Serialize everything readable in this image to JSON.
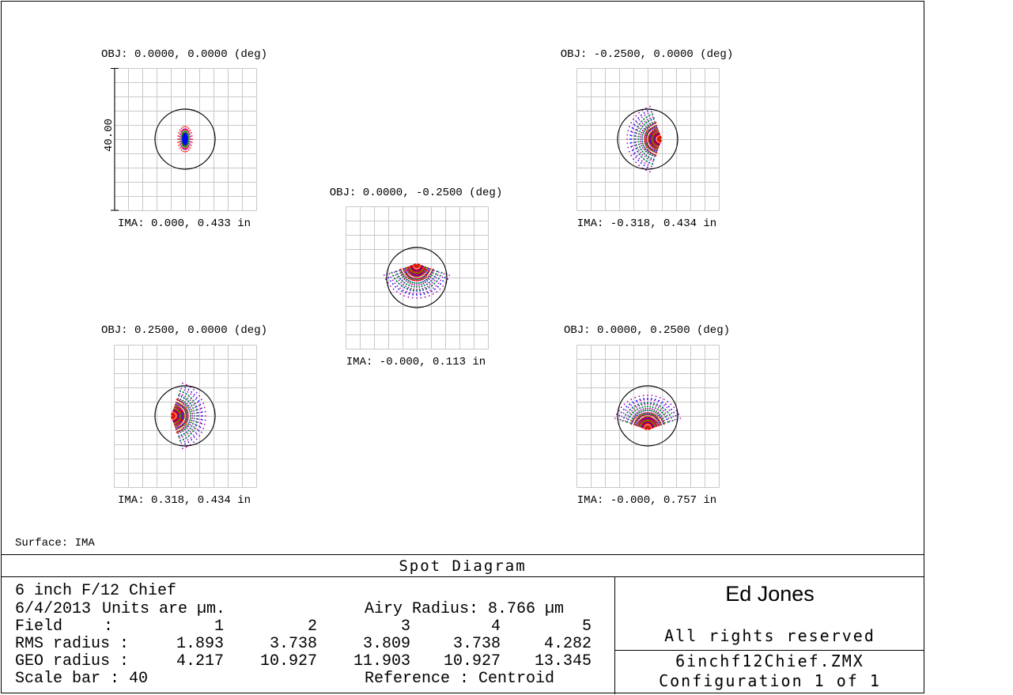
{
  "plots": [
    {
      "obj": "OBJ: 0.0000, 0.0000 (deg)",
      "ima": "IMA: 0.000, 0.433 in",
      "shape": "ellipse"
    },
    {
      "obj": "OBJ: -0.2500, 0.0000 (deg)",
      "ima": "IMA: -0.318, 0.434 in",
      "shape": "fan-right"
    },
    {
      "obj": "OBJ: 0.0000, -0.2500 (deg)",
      "ima": "IMA: -0.000, 0.113 in",
      "shape": "fan-up"
    },
    {
      "obj": "OBJ: 0.2500, 0.0000 (deg)",
      "ima": "IMA: 0.318, 0.434 in",
      "shape": "fan-left"
    },
    {
      "obj": "OBJ: 0.0000, 0.2500 (deg)",
      "ima": "IMA: -0.000, 0.757 in",
      "shape": "fan-down"
    }
  ],
  "scale_label": "40.00",
  "surface": "Surface: IMA",
  "title": "Spot Diagram",
  "info": {
    "line1": "6 inch F/12 Chief",
    "date": "6/4/2013",
    "units": "Units are µm.",
    "airy": "Airy Radius: 8.766 µm",
    "field_label": "Field",
    "rms_label": "RMS radius :",
    "geo_label": "GEO radius :",
    "colon": ":",
    "fields": [
      "1",
      "2",
      "3",
      "4",
      "5"
    ],
    "rms": [
      "1.893",
      "3.738",
      "3.809",
      "3.738",
      "4.282"
    ],
    "geo": [
      "4.217",
      "10.927",
      "11.903",
      "10.927",
      "13.345"
    ],
    "scale": "Scale bar  : 40",
    "reference": "Reference  : Centroid"
  },
  "author": "Ed Jones",
  "rights": "All rights reserved",
  "file": "6inchf12Chief.ZMX",
  "config": "Configuration 1 of 1",
  "colors": {
    "wave1": "#0000ff",
    "wave2": "#00aa00",
    "wave3": "#ff0000",
    "wave4": "#aa00aa",
    "grid": "#c8c8c8"
  }
}
